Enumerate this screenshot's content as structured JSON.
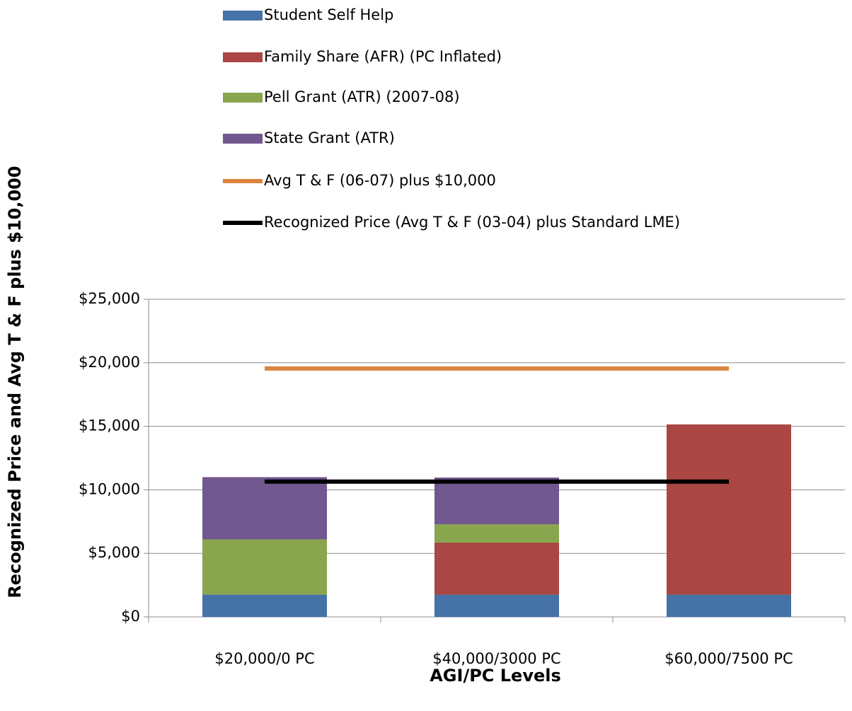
{
  "chart_data": {
    "type": "bar",
    "stacked": true,
    "x_label": "AGI/PC Levels",
    "y_label": "Recognized Price and  Avg T & F plus $10,000",
    "categories": [
      "$20,000/0 PC",
      "$40,000/3000 PC",
      "$60,000/7500 PC"
    ],
    "series": [
      {
        "name": "Student Self Help",
        "color": "#4572a7",
        "type": "bar",
        "values": [
          1750,
          1750,
          1750
        ]
      },
      {
        "name": "Family Share (AFR) (PC Inflated)",
        "color": "#aa4643",
        "type": "bar",
        "values": [
          0,
          4100,
          13400
        ]
      },
      {
        "name": "Pell Grant (ATR) (2007-08)",
        "color": "#89a54e",
        "type": "bar",
        "values": [
          4350,
          1440,
          0
        ]
      },
      {
        "name": "State Grant (ATR)",
        "color": "#71588f",
        "type": "bar",
        "values": [
          4900,
          3680,
          0
        ]
      },
      {
        "name": "Avg T & F (06-07) plus $10,000",
        "color": "#db843d",
        "type": "line",
        "values": [
          19550,
          19550,
          19550
        ]
      },
      {
        "name": "Recognized Price (Avg T & F (03-04) plus Standard LME)",
        "color": "#000000",
        "type": "line",
        "values": [
          10650,
          10650,
          10650
        ]
      }
    ],
    "ylim": [
      0,
      25000
    ],
    "yticks": [
      {
        "value": 0,
        "label": "$0"
      },
      {
        "value": 5000,
        "label": "$5,000"
      },
      {
        "value": 10000,
        "label": "$10,000"
      },
      {
        "value": 15000,
        "label": "$15,000"
      },
      {
        "value": 20000,
        "label": "$20,000"
      },
      {
        "value": 25000,
        "label": "$25,000"
      }
    ],
    "grid": true,
    "legend": "top"
  }
}
